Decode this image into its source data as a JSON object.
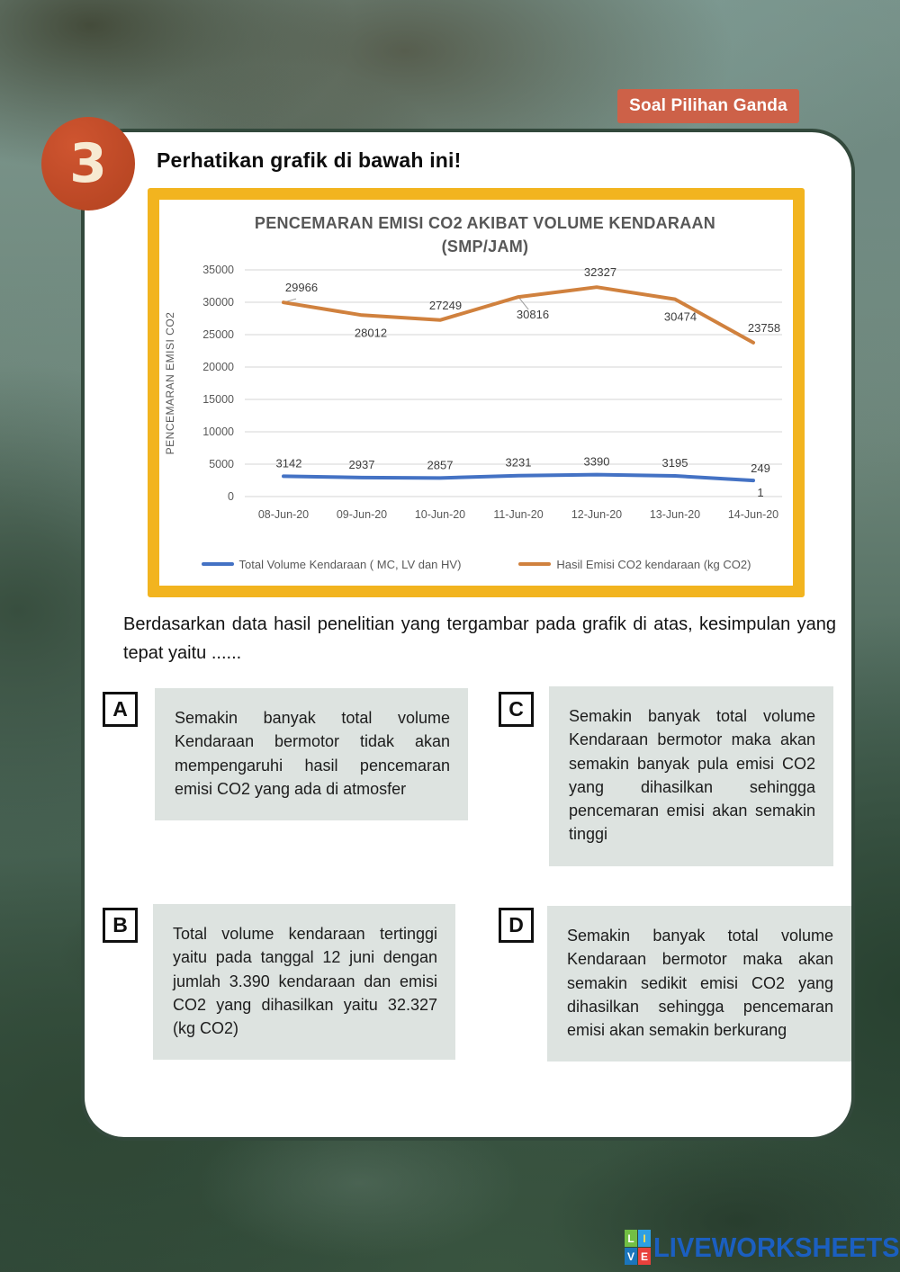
{
  "badge": {
    "label": "Soal Pilihan Ganda",
    "color": "#cd6148"
  },
  "question_number": "3",
  "prompt": "Perhatikan grafik di bawah ini!",
  "question_text": "Berdasarkan data hasil penelitian yang tergambar pada grafik di atas, kesimpulan  yang tepat yaitu ......",
  "options": [
    {
      "letter": "A",
      "text": "Semakin banyak total volume Kendaraan bermotor tidak akan mempengaruhi hasil pencemaran emisi CO2 yang ada di atmosfer"
    },
    {
      "letter": "B",
      "text": "Total volume kendaraan tertinggi yaitu pada tanggal 12 juni dengan jumlah 3.390 kendaraan dan emisi CO2 yang dihasilkan yaitu 32.327 (kg CO2)"
    },
    {
      "letter": "C",
      "text": "Semakin banyak total volume Kendaraan bermotor maka akan semakin banyak pula emisi CO2 yang dihasilkan sehingga pencemaran emisi akan semakin tinggi"
    },
    {
      "letter": "D",
      "text": "Semakin banyak total volume Kendaraan bermotor maka akan semakin sedikit emisi CO2 yang dihasilkan sehingga pencemaran emisi akan semakin berkurang"
    }
  ],
  "colors": {
    "chart_border": "#f2b41f",
    "option_box": "#dde3e0",
    "number_circle": "#bf4a27",
    "card_border": "#33493c"
  },
  "chart_data": {
    "type": "line",
    "title": "PENCEMARAN EMISI CO2 AKIBAT VOLUME KENDARAAN",
    "subtitle": "(SMP/JAM)",
    "xlabel": "",
    "ylabel": "PENCEMARAN EMISI CO2",
    "ylim": [
      0,
      35000
    ],
    "ytick_step": 5000,
    "grid": true,
    "legend_position": "bottom",
    "categories": [
      "08-Jun-20",
      "09-Jun-20",
      "10-Jun-20",
      "11-Jun-20",
      "12-Jun-20",
      "13-Jun-20",
      "14-Jun-20"
    ],
    "series": [
      {
        "name": "Total Volume Kendaraan ( MC, LV dan HV)",
        "color": "#4472c4",
        "values": [
          3142,
          2937,
          2857,
          3231,
          3390,
          3195,
          2491
        ],
        "labels": [
          "3142",
          "2937",
          "2857",
          "3231",
          "3390",
          "3195",
          "249\n1"
        ],
        "label_offsets": [
          [
            6,
            -10
          ],
          [
            0,
            -10
          ],
          [
            0,
            -10
          ],
          [
            0,
            -10
          ],
          [
            0,
            -10
          ],
          [
            0,
            -10
          ],
          [
            8,
            -10
          ]
        ],
        "leader_lines": [
          0,
          0,
          0,
          0,
          0,
          0,
          0
        ]
      },
      {
        "name": "Hasil Emisi CO2 kendaraan (kg CO2)",
        "color": "#d0813e",
        "values": [
          29966,
          28012,
          27249,
          30816,
          32327,
          30474,
          23758
        ],
        "labels": [
          "29966",
          "28012",
          "27249",
          "30816",
          "32327",
          "30474",
          "23758"
        ],
        "label_offsets": [
          [
            20,
            -12
          ],
          [
            10,
            24
          ],
          [
            6,
            -12
          ],
          [
            16,
            24
          ],
          [
            4,
            -12
          ],
          [
            6,
            24
          ],
          [
            12,
            -12
          ]
        ],
        "leader_lines": [
          1,
          0,
          0,
          1,
          0,
          0,
          0
        ]
      }
    ]
  },
  "footer": {
    "logo_text": "LIVEWORKSHEETS",
    "logo_squares": [
      {
        "letter": "L",
        "bg": "#72bf44",
        "fg": "#ffffff"
      },
      {
        "letter": "I",
        "bg": "#2e9fe3",
        "fg": "#ffe14d"
      },
      {
        "letter": "V",
        "bg": "#1b75bb",
        "fg": "#ffffff"
      },
      {
        "letter": "E",
        "bg": "#e8413c",
        "fg": "#ffffff"
      }
    ]
  }
}
